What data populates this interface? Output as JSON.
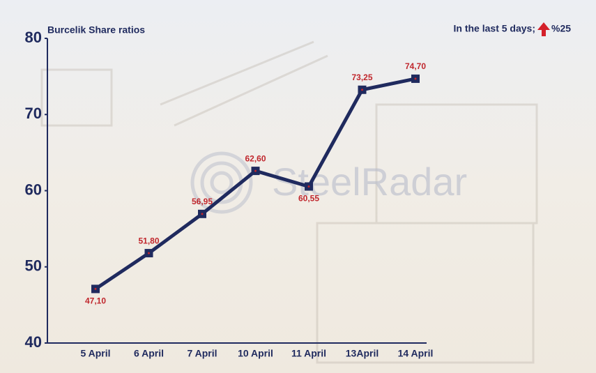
{
  "chart_data": {
    "type": "line",
    "title": "Burcelik Share ratios",
    "annotation": {
      "text": "In the last 5 days;",
      "value": "%25"
    },
    "watermark": "SteelRadar",
    "categories": [
      "5 April",
      "6 April",
      "7 April",
      "10 April",
      "11 April",
      "13April",
      "14 April"
    ],
    "values": [
      47.1,
      51.8,
      56.95,
      62.6,
      60.55,
      73.25,
      74.7
    ],
    "value_labels": [
      "47,10",
      "51,80",
      "56,95",
      "62,60",
      "60,55",
      "73,25",
      "74,70"
    ],
    "color": "#1f2a5e",
    "label_color": "#c0272d",
    "ylim": [
      40,
      80
    ],
    "yticks": [
      40,
      50,
      60,
      70,
      80
    ],
    "grid": false
  }
}
